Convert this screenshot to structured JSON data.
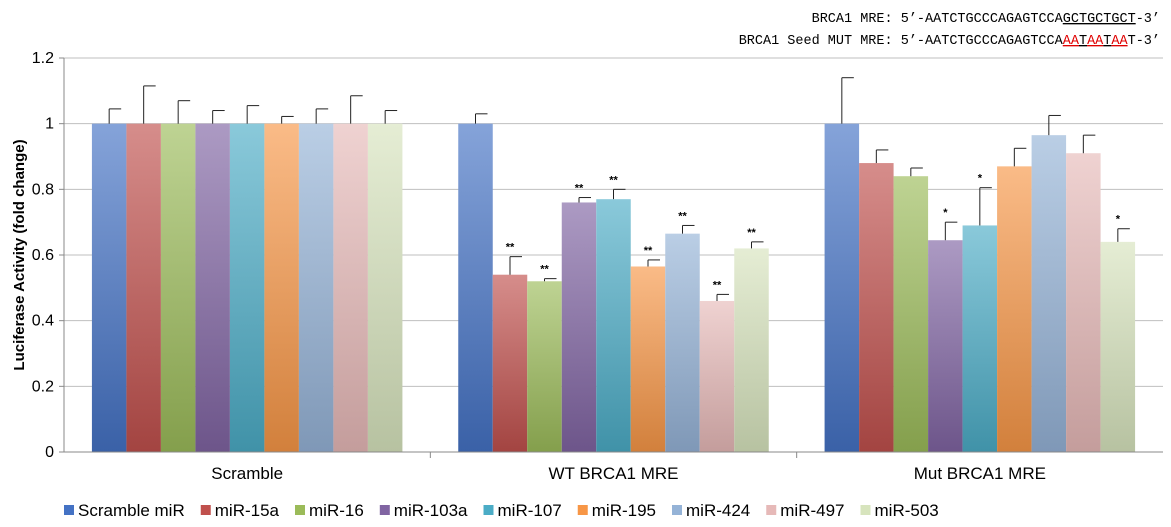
{
  "chart_data": {
    "type": "bar",
    "title": "",
    "ylabel": "Luciferase Activity (fold change)",
    "xlabel": "",
    "ylim": [
      0,
      1.2
    ],
    "yticks": [
      "0",
      "0.2",
      "0.4",
      "0.6",
      "0.8",
      "1",
      "1.2"
    ],
    "grid": "horizontal",
    "legend_position": "bottom",
    "categories": [
      "Scramble",
      "WT BRCA1 MRE",
      "Mut BRCA1 MRE"
    ],
    "series": [
      {
        "name": "Scramble miR",
        "color": "#4472C4",
        "values": [
          1.0,
          1.0,
          1.0
        ],
        "errors": [
          0.045,
          0.03,
          0.14
        ],
        "sig": [
          "",
          "",
          ""
        ]
      },
      {
        "name": "miR-15a",
        "color": "#C0504D",
        "values": [
          1.0,
          0.54,
          0.88
        ],
        "errors": [
          0.115,
          0.055,
          0.04
        ],
        "sig": [
          "",
          "**",
          ""
        ]
      },
      {
        "name": "miR-16",
        "color": "#9BBB59",
        "values": [
          1.0,
          0.52,
          0.84
        ],
        "errors": [
          0.07,
          0.008,
          0.025
        ],
        "sig": [
          "",
          "**",
          ""
        ]
      },
      {
        "name": "miR-103a",
        "color": "#8064A2",
        "values": [
          1.0,
          0.76,
          0.645
        ],
        "errors": [
          0.04,
          0.015,
          0.055
        ],
        "sig": [
          "",
          "**",
          "*"
        ]
      },
      {
        "name": "miR-107",
        "color": "#4BACC6",
        "values": [
          1.0,
          0.77,
          0.69
        ],
        "errors": [
          0.055,
          0.03,
          0.115
        ],
        "sig": [
          "",
          "**",
          "*"
        ]
      },
      {
        "name": "miR-195",
        "color": "#F79646",
        "values": [
          1.0,
          0.565,
          0.87
        ],
        "errors": [
          0.022,
          0.02,
          0.055
        ],
        "sig": [
          "",
          "**",
          ""
        ]
      },
      {
        "name": "miR-424",
        "color": "#95B3D7",
        "values": [
          1.0,
          0.665,
          0.965
        ],
        "errors": [
          0.045,
          0.025,
          0.06
        ],
        "sig": [
          "",
          "**",
          ""
        ]
      },
      {
        "name": "miR-497",
        "color": "#E6B9B8",
        "values": [
          1.0,
          0.46,
          0.91
        ],
        "errors": [
          0.085,
          0.02,
          0.055
        ],
        "sig": [
          "",
          "**",
          ""
        ]
      },
      {
        "name": "miR-503",
        "color": "#D7E4BD",
        "values": [
          1.0,
          0.62,
          0.64
        ],
        "errors": [
          0.04,
          0.02,
          0.04
        ],
        "sig": [
          "",
          "**",
          "*"
        ]
      }
    ],
    "annotations": [
      {
        "segments": [
          {
            "text": "BRCA1 MRE: 5’-AATCTGCCCAGAGTCCA"
          },
          {
            "text": "GCTGCTGCT",
            "underline": true
          },
          {
            "text": "-3’"
          }
        ]
      },
      {
        "segments": [
          {
            "text": "BRCA1 Seed MUT MRE: 5’-AATCTGCCCAGAGTCCA"
          },
          {
            "text": "AA",
            "underline": true,
            "color": "#E00000"
          },
          {
            "text": "T",
            "underline": true
          },
          {
            "text": "AA",
            "underline": true,
            "color": "#E00000"
          },
          {
            "text": "T",
            "underline": true
          },
          {
            "text": "AA",
            "underline": true,
            "color": "#E00000"
          },
          {
            "text": "T"
          },
          {
            "text": "-3’"
          }
        ]
      }
    ]
  }
}
